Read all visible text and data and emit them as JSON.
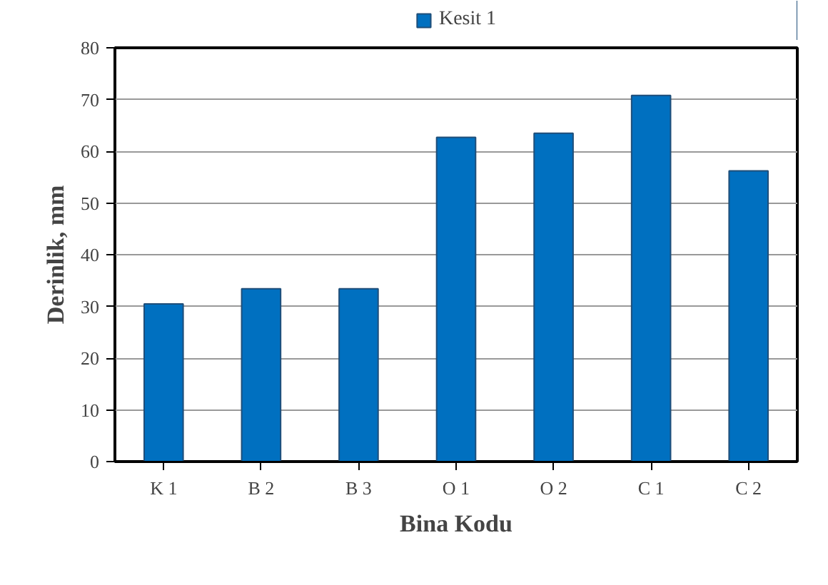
{
  "chart_data": {
    "type": "bar",
    "xlabel": "Bina Kodu",
    "ylabel": "Derinlik, mm",
    "categories": [
      "K 1",
      "B 2",
      "B 3",
      "O 1",
      "O 2",
      "C 1",
      "C 2"
    ],
    "series": [
      {
        "name": "Kesit 1",
        "color": "#0070c0",
        "values": [
          30.5,
          33.4,
          33.4,
          62.7,
          63.5,
          70.8,
          56.2
        ]
      }
    ],
    "ylim": [
      0,
      80
    ],
    "yticks": [
      0,
      10,
      20,
      30,
      40,
      50,
      60,
      70,
      80
    ],
    "grid": "y",
    "legend": "top"
  }
}
